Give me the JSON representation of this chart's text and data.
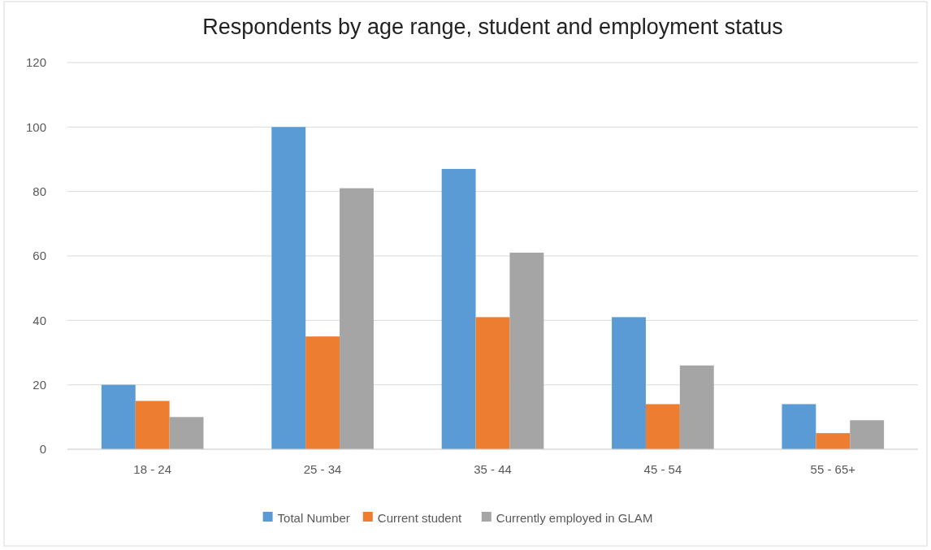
{
  "chart_data": {
    "type": "bar",
    "title": "Respondents by age range, student and employment status",
    "categories": [
      "18 - 24",
      "25 - 34",
      "35 - 44",
      "45 - 54",
      "55 - 65+"
    ],
    "series": [
      {
        "name": "Total Number",
        "color": "#5b9bd5",
        "values": [
          20,
          100,
          87,
          41,
          14
        ]
      },
      {
        "name": "Current student",
        "color": "#ed7d31",
        "values": [
          15,
          35,
          41,
          14,
          5
        ]
      },
      {
        "name": "Currently employed in GLAM",
        "color": "#a5a5a5",
        "values": [
          10,
          81,
          61,
          26,
          9
        ]
      }
    ],
    "ylim": [
      0,
      120
    ],
    "yticks": [
      0,
      20,
      40,
      60,
      80,
      100,
      120
    ],
    "grid": "y",
    "legend": "bottom"
  }
}
